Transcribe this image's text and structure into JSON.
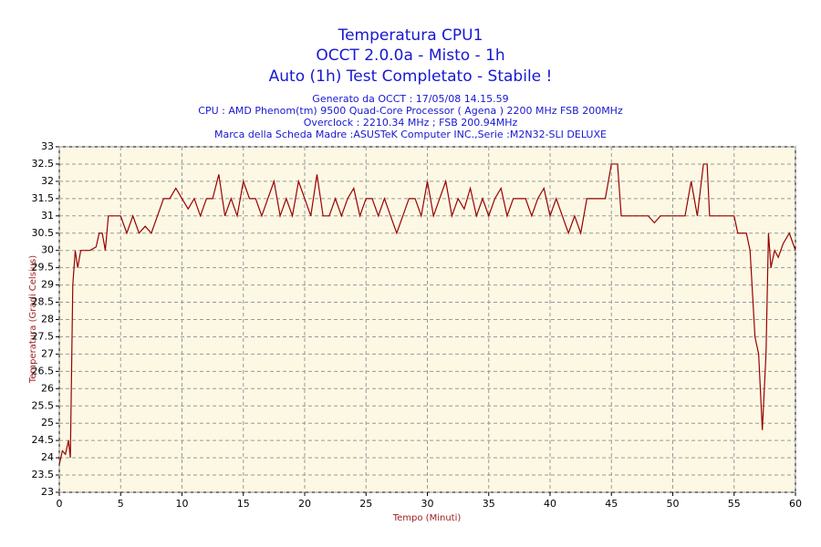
{
  "chart_data": {
    "type": "line",
    "title_lines": [
      "Temperatura CPU1",
      "OCCT 2.0.0a - Misto - 1h",
      "Auto (1h) Test Completato - Stabile !"
    ],
    "subtitle_lines": [
      "Generato da OCCT : 17/05/08 14.15.59",
      "CPU : AMD Phenom(tm) 9500 Quad-Core Processor ( Agena ) 2200 MHz FSB 200MHz",
      "Overclock : 2210.34 MHz ; FSB 200.94MHz",
      "Marca della Scheda Madre :ASUSTeK Computer INC.,Serie :M2N32-SLI DELUXE"
    ],
    "x_label": "Tempo (Minuti)",
    "y_label": "Temperatura (Gradi Celsius)",
    "xlim": [
      0,
      60
    ],
    "ylim": [
      23,
      33
    ],
    "xticks": [
      0,
      5,
      10,
      15,
      20,
      25,
      30,
      35,
      40,
      45,
      50,
      55,
      60
    ],
    "yticks": [
      23,
      23.5,
      24,
      24.5,
      25,
      25.5,
      26,
      26.5,
      27,
      27.5,
      28,
      28.5,
      29,
      29.5,
      30,
      30.5,
      31,
      31.5,
      32,
      32.5,
      33
    ],
    "grid": true,
    "series": [
      {
        "color": "#990000",
        "x": [
          0,
          0.25,
          0.5,
          0.75,
          0.9,
          1.1,
          1.3,
          1.5,
          1.75,
          2,
          2.5,
          3,
          3.25,
          3.5,
          3.75,
          4,
          4.5,
          5,
          5.5,
          6,
          6.5,
          7,
          7.5,
          8,
          8.5,
          9,
          9.5,
          10,
          10.5,
          11,
          11.5,
          12,
          12.5,
          13,
          13.5,
          14,
          14.5,
          15,
          15.5,
          16,
          16.5,
          17,
          17.5,
          18,
          18.5,
          19,
          19.5,
          20,
          20.5,
          21,
          21.5,
          22,
          22.5,
          23,
          23.5,
          24,
          24.5,
          25,
          25.5,
          26,
          26.5,
          27,
          27.5,
          28,
          28.5,
          29,
          29.5,
          30,
          30.5,
          31,
          31.5,
          32,
          32.5,
          33,
          33.5,
          34,
          34.5,
          35,
          35.5,
          36,
          36.5,
          37,
          37.5,
          38,
          38.5,
          39,
          39.5,
          40,
          40.5,
          41,
          41.5,
          42,
          42.5,
          43,
          43.5,
          44,
          44.5,
          45,
          45.5,
          45.8,
          46,
          47,
          48,
          48.5,
          49,
          50,
          50.5,
          51,
          51.5,
          52,
          52.5,
          52.8,
          53,
          54,
          55,
          55.3,
          56,
          56.3,
          56.7,
          57,
          57.3,
          57.6,
          57.8,
          58,
          58.3,
          58.6,
          59,
          59.5,
          59.8,
          60
        ],
        "values": [
          23.8,
          24.2,
          24.1,
          24.5,
          24,
          29,
          30,
          29.5,
          30,
          30,
          30,
          30.1,
          30.5,
          30.5,
          30,
          31,
          31,
          31,
          30.5,
          31,
          30.5,
          30.7,
          30.5,
          31,
          31.5,
          31.5,
          31.8,
          31.5,
          31.2,
          31.5,
          31,
          31.5,
          31.5,
          32.2,
          31,
          31.5,
          31,
          32,
          31.5,
          31.5,
          31,
          31.5,
          32,
          31,
          31.5,
          31,
          32,
          31.5,
          31,
          32.2,
          31,
          31,
          31.5,
          31,
          31.5,
          31.8,
          31,
          31.5,
          31.5,
          31,
          31.5,
          31,
          30.5,
          31,
          31.5,
          31.5,
          31,
          32,
          31,
          31.5,
          32,
          31,
          31.5,
          31.2,
          31.8,
          31,
          31.5,
          31,
          31.5,
          31.8,
          31,
          31.5,
          31.5,
          31.5,
          31,
          31.5,
          31.8,
          31,
          31.5,
          31,
          30.5,
          31,
          30.5,
          31.5,
          31.5,
          31.5,
          31.5,
          32.5,
          32.5,
          31,
          31,
          31,
          31,
          30.8,
          31,
          31,
          31,
          31,
          32,
          31,
          32.5,
          32.5,
          31,
          31,
          31,
          30.5,
          30.5,
          30,
          27.5,
          27,
          24.8,
          27,
          30.5,
          29.5,
          30,
          29.8,
          30.2,
          30.5,
          30.2,
          30
        ]
      }
    ]
  }
}
